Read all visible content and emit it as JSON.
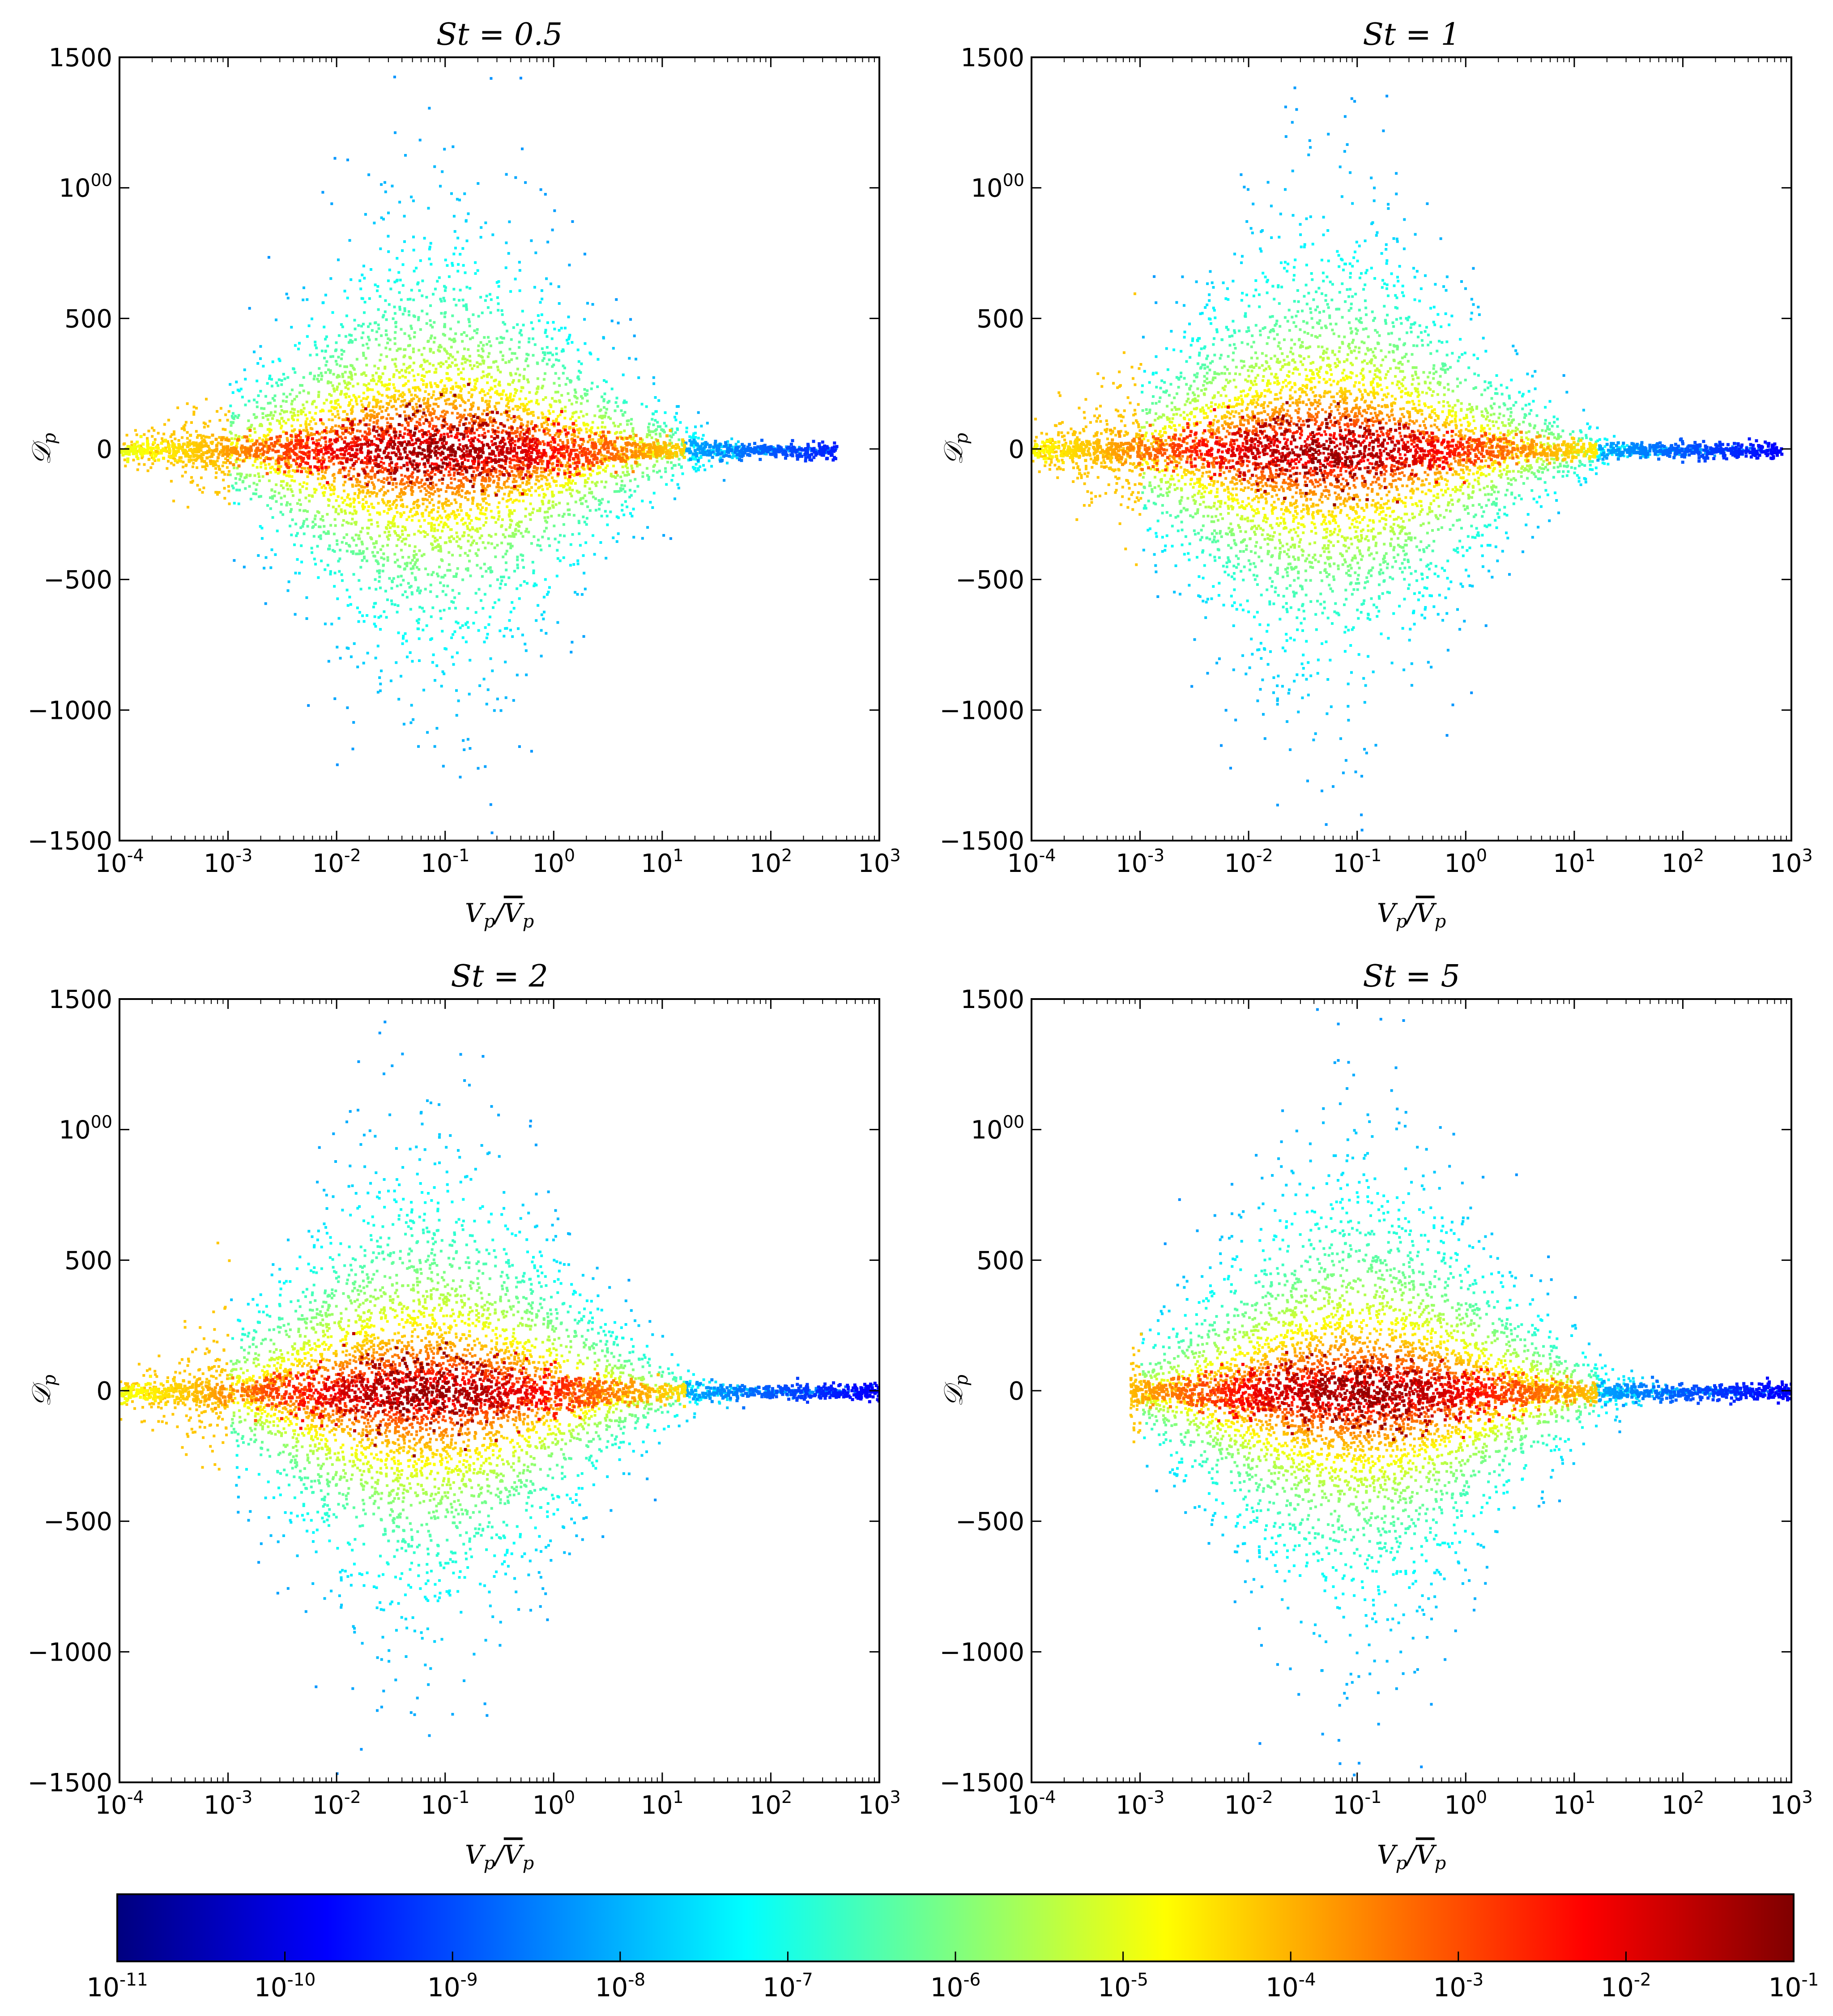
{
  "chart_data": [
    {
      "type": "heatmap",
      "title": "St = 0.5",
      "title_var": "St",
      "title_value": "0.5",
      "xlabel": "Vp / ̅Vp",
      "ylabel": "𝒟p",
      "x_scale": "log",
      "xlim": [
        0.0001,
        1000
      ],
      "ylim": [
        -1500,
        1500
      ],
      "x_ticks": [
        "10-4",
        "10-3",
        "10-2",
        "10-1",
        "100",
        "101",
        "102",
        "103"
      ],
      "y_ticks": [
        "1500",
        "1000",
        "500",
        "0",
        "−500",
        "−1000",
        "−1500"
      ],
      "spread": {
        "peak_log_x": -1.1,
        "max_abs_y": 1450,
        "x_range_log": [
          -4,
          2.6
        ]
      }
    },
    {
      "type": "heatmap",
      "title": "St = 1",
      "title_var": "St",
      "title_value": "1",
      "xlabel": "Vp / ̅Vp",
      "ylabel": "𝒟p",
      "x_scale": "log",
      "xlim": [
        0.0001,
        1000
      ],
      "ylim": [
        -1500,
        1500
      ],
      "x_ticks": [
        "10-4",
        "10-3",
        "10-2",
        "10-1",
        "100",
        "101",
        "102",
        "103"
      ],
      "y_ticks": [
        "1500",
        "1000",
        "500",
        "0",
        "−500",
        "−1000",
        "−1500"
      ],
      "spread": {
        "peak_log_x": -1.3,
        "max_abs_y": 1500,
        "x_range_log": [
          -4,
          2.9
        ]
      }
    },
    {
      "type": "heatmap",
      "title": "St = 2",
      "title_var": "St",
      "title_value": "2",
      "xlabel": "Vp / ̅Vp",
      "ylabel": "𝒟p",
      "x_scale": "log",
      "xlim": [
        0.0001,
        1000
      ],
      "ylim": [
        -1500,
        1500
      ],
      "x_ticks": [
        "10-4",
        "10-3",
        "10-2",
        "10-1",
        "100",
        "101",
        "102",
        "103"
      ],
      "y_ticks": [
        "1500",
        "1000",
        "500",
        "0",
        "−500",
        "−1000",
        "−1500"
      ],
      "spread": {
        "peak_log_x": -1.2,
        "max_abs_y": 1500,
        "x_range_log": [
          -4,
          3
        ]
      }
    },
    {
      "type": "heatmap",
      "title": "St = 5",
      "title_var": "St",
      "title_value": "5",
      "xlabel": "Vp / ̅Vp",
      "ylabel": "𝒟p",
      "x_scale": "log",
      "xlim": [
        0.0001,
        1000
      ],
      "ylim": [
        -1500,
        1500
      ],
      "x_ticks": [
        "10-4",
        "10-3",
        "10-2",
        "10-1",
        "100",
        "101",
        "102",
        "103"
      ],
      "y_ticks": [
        "1500",
        "1000",
        "500",
        "0",
        "−500",
        "−1000",
        "−1500"
      ],
      "spread": {
        "peak_log_x": -1.0,
        "max_abs_y": 1480,
        "x_range_log": [
          -3.1,
          3
        ]
      }
    }
  ],
  "colorbar": {
    "colormap": "jet",
    "scale": "log",
    "range": [
      1e-11,
      0.1
    ],
    "ticks": [
      "10-11",
      "10-10",
      "10-9",
      "10-8",
      "10-7",
      "10-6",
      "10-5",
      "10-4",
      "10-3",
      "10-2",
      "10-1"
    ],
    "colors": [
      "#00007f",
      "#0000ff",
      "#007fff",
      "#00ffff",
      "#7fff7f",
      "#ffff00",
      "#ff7f00",
      "#ff0000",
      "#7f0000"
    ]
  }
}
